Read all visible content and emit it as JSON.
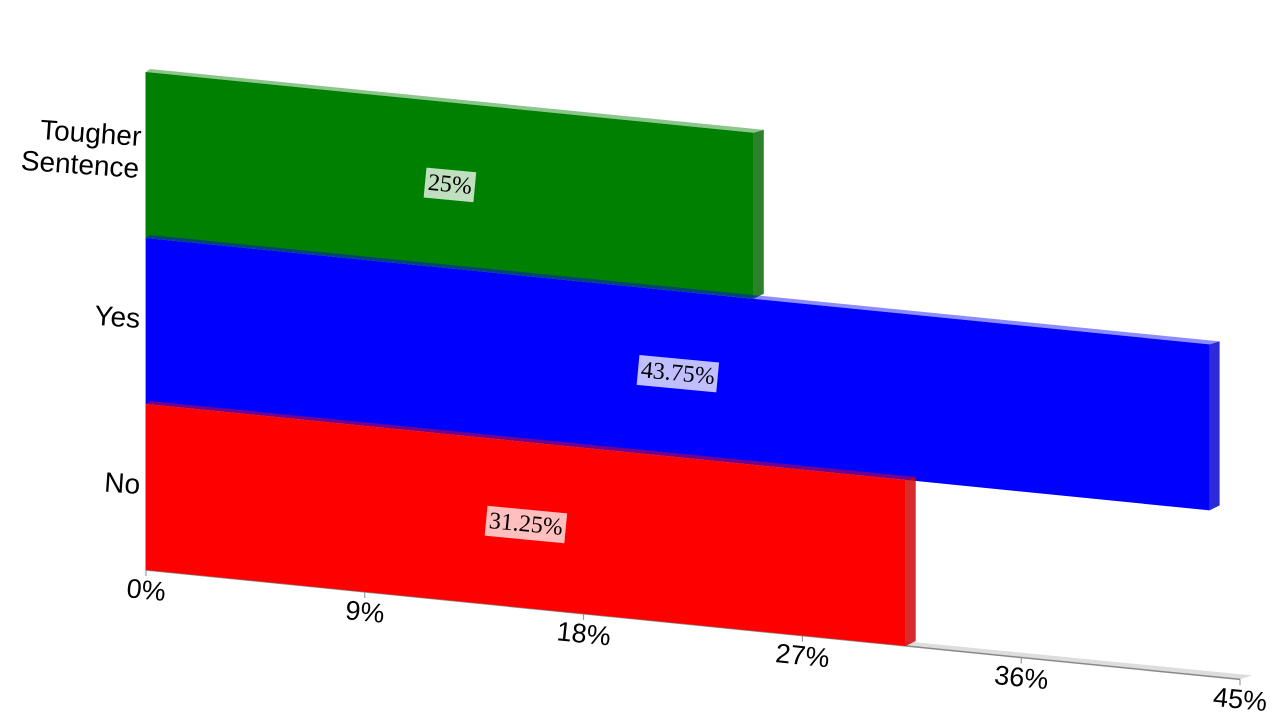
{
  "chart_data": {
    "type": "bar",
    "orientation": "horizontal",
    "categories": [
      "Tougher Sentence",
      "Yes",
      "No"
    ],
    "values": [
      25,
      43.75,
      31.25
    ],
    "value_labels": [
      "25%",
      "43.75%",
      "31.25%"
    ],
    "colors": [
      "#008000",
      "#0000ff",
      "#ff0000"
    ],
    "xlim": [
      0,
      45
    ],
    "xticks": [
      {
        "value": 0,
        "label": "0%"
      },
      {
        "value": 9,
        "label": "9%"
      },
      {
        "value": 18,
        "label": "18%"
      },
      {
        "value": 27,
        "label": "27%"
      },
      {
        "value": 36,
        "label": "36%"
      },
      {
        "value": 45,
        "label": "45%"
      }
    ]
  }
}
